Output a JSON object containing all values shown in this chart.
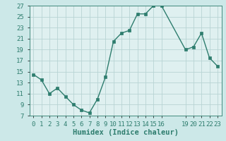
{
  "x": [
    0,
    1,
    2,
    3,
    4,
    5,
    6,
    7,
    8,
    9,
    10,
    11,
    12,
    13,
    14,
    15,
    16,
    19,
    20,
    21,
    22,
    23
  ],
  "y": [
    14.5,
    13.5,
    11,
    12,
    10.5,
    9,
    8,
    7.5,
    10,
    14,
    20.5,
    22,
    22.5,
    25.5,
    25.5,
    27,
    27,
    19,
    19.5,
    22,
    17.5,
    16
  ],
  "xlabel": "Humidex (Indice chaleur)",
  "ylim": [
    7,
    27
  ],
  "xlim": [
    -0.5,
    23.5
  ],
  "yticks": [
    7,
    9,
    11,
    13,
    15,
    17,
    19,
    21,
    23,
    25,
    27
  ],
  "xticks": [
    0,
    1,
    2,
    3,
    4,
    5,
    6,
    7,
    8,
    9,
    10,
    11,
    12,
    13,
    14,
    15,
    16,
    19,
    20,
    21,
    22,
    23
  ],
  "xtick_labels": [
    "0",
    "1",
    "2",
    "3",
    "4",
    "5",
    "6",
    "7",
    "8",
    "9",
    "10",
    "11",
    "12",
    "13",
    "14",
    "15",
    "16",
    "19",
    "20",
    "21",
    "22",
    "23"
  ],
  "line_color": "#2e7d6e",
  "marker": "s",
  "marker_size": 2.5,
  "bg_color": "#cce8e8",
  "grid_color": "#b8d4d4",
  "plot_bg": "#dff0f0",
  "xlabel_fontsize": 7.5,
  "tick_fontsize": 6.5,
  "linewidth": 1.0
}
